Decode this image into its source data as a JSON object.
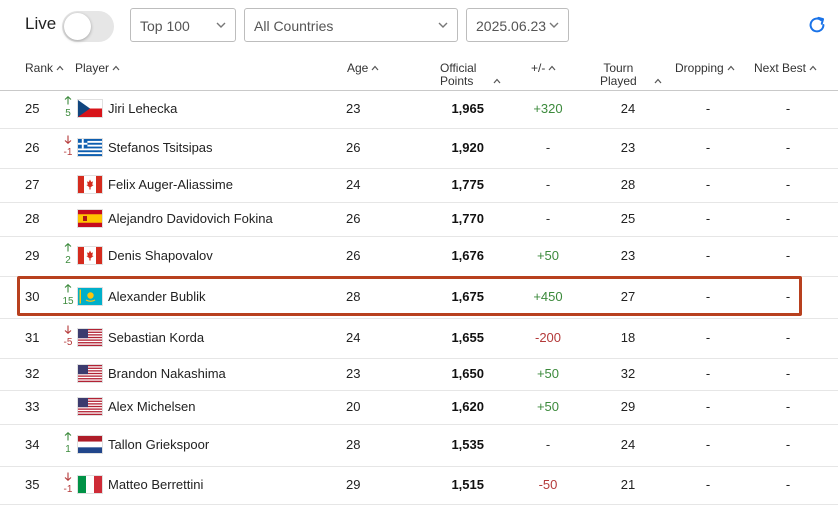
{
  "filters": {
    "live_label": "Live",
    "live_on": false,
    "top_select": "Top 100",
    "country_select": "All Countries",
    "date_select": "2025.06.23"
  },
  "columns": {
    "rank": "Rank",
    "player": "Player",
    "age": "Age",
    "points_line1": "Official",
    "points_line2": "Points",
    "change": "+/-",
    "tourn_line1": "Tourn",
    "tourn_line2": "Played",
    "dropping": "Dropping",
    "next_best": "Next Best"
  },
  "colors": {
    "highlight": "#b8401e",
    "up": "#3c8a3c",
    "down": "#b43a3a",
    "refresh": "#1a73e8"
  },
  "rows": [
    {
      "rank": "25",
      "move": "5",
      "move_dir": "up",
      "flag": "cze",
      "player": "Jiri Lehecka",
      "age": "23",
      "points": "1,965",
      "change": "+320",
      "change_dir": "up",
      "tourn": "24",
      "dropping": "-",
      "next_best": "-"
    },
    {
      "rank": "26",
      "move": "-1",
      "move_dir": "down",
      "flag": "gre",
      "player": "Stefanos Tsitsipas",
      "age": "26",
      "points": "1,920",
      "change": "-",
      "change_dir": "neutral",
      "tourn": "23",
      "dropping": "-",
      "next_best": "-"
    },
    {
      "rank": "27",
      "move": "",
      "move_dir": "none",
      "flag": "can",
      "player": "Felix Auger-Aliassime",
      "age": "24",
      "points": "1,775",
      "change": "-",
      "change_dir": "neutral",
      "tourn": "28",
      "dropping": "-",
      "next_best": "-"
    },
    {
      "rank": "28",
      "move": "",
      "move_dir": "none",
      "flag": "esp",
      "player": "Alejandro Davidovich Fokina",
      "age": "26",
      "points": "1,770",
      "change": "-",
      "change_dir": "neutral",
      "tourn": "25",
      "dropping": "-",
      "next_best": "-"
    },
    {
      "rank": "29",
      "move": "2",
      "move_dir": "up",
      "flag": "can",
      "player": "Denis Shapovalov",
      "age": "26",
      "points": "1,676",
      "change": "+50",
      "change_dir": "up",
      "tourn": "23",
      "dropping": "-",
      "next_best": "-"
    },
    {
      "rank": "30",
      "move": "15",
      "move_dir": "up",
      "flag": "kaz",
      "player": "Alexander Bublik",
      "age": "28",
      "points": "1,675",
      "change": "+450",
      "change_dir": "up",
      "tourn": "27",
      "dropping": "-",
      "next_best": "-",
      "highlighted": true
    },
    {
      "rank": "31",
      "move": "-5",
      "move_dir": "down",
      "flag": "usa",
      "player": "Sebastian Korda",
      "age": "24",
      "points": "1,655",
      "change": "-200",
      "change_dir": "down",
      "tourn": "18",
      "dropping": "-",
      "next_best": "-"
    },
    {
      "rank": "32",
      "move": "",
      "move_dir": "none",
      "flag": "usa",
      "player": "Brandon Nakashima",
      "age": "23",
      "points": "1,650",
      "change": "+50",
      "change_dir": "up",
      "tourn": "32",
      "dropping": "-",
      "next_best": "-"
    },
    {
      "rank": "33",
      "move": "",
      "move_dir": "none",
      "flag": "usa",
      "player": "Alex Michelsen",
      "age": "20",
      "points": "1,620",
      "change": "+50",
      "change_dir": "up",
      "tourn": "29",
      "dropping": "-",
      "next_best": "-"
    },
    {
      "rank": "34",
      "move": "1",
      "move_dir": "up",
      "flag": "ned",
      "player": "Tallon Griekspoor",
      "age": "28",
      "points": "1,535",
      "change": "-",
      "change_dir": "neutral",
      "tourn": "24",
      "dropping": "-",
      "next_best": "-"
    },
    {
      "rank": "35",
      "move": "-1",
      "move_dir": "down",
      "flag": "ita",
      "player": "Matteo Berrettini",
      "age": "29",
      "points": "1,515",
      "change": "-50",
      "change_dir": "down",
      "tourn": "21",
      "dropping": "-",
      "next_best": "-"
    }
  ]
}
